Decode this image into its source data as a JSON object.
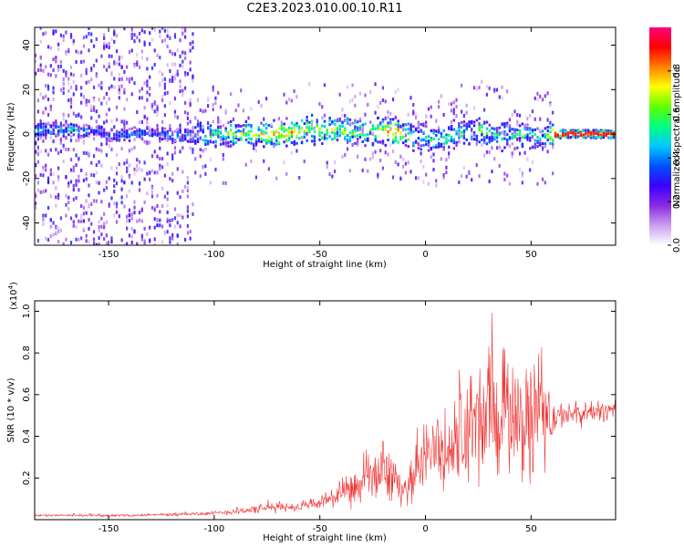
{
  "title": "C2E3.2023.010.00.10.R11",
  "chart_data": [
    {
      "type": "heatmap",
      "xlabel": "Height of straight line (km)",
      "ylabel": "Frequency (Hz)",
      "xlim": [
        -185,
        90
      ],
      "ylim": [
        -50,
        48
      ],
      "xticks": [
        -150,
        -100,
        -50,
        0,
        50
      ],
      "yticks": [
        -40,
        -20,
        0,
        20,
        40
      ],
      "grid": false,
      "colorbar": {
        "label": "Normalized spectral amplitude",
        "range": [
          0,
          1
        ],
        "ticks": [
          0.0,
          0.2,
          0.4,
          0.6,
          0.8
        ],
        "tick_labels": [
          "0.0",
          "0.2",
          "0.4",
          "0.6",
          "0.8"
        ],
        "colors": [
          "#ffffff",
          "#c9a0f0",
          "#8a2be2",
          "#3a00ff",
          "#0050ff",
          "#00c8ff",
          "#00ff80",
          "#60ff00",
          "#ffff00",
          "#ff8000",
          "#ff0000",
          "#ff0080"
        ]
      },
      "ridge": {
        "x": [
          -170,
          -150,
          -130,
          -110,
          -90,
          -70,
          -50,
          -30,
          -15,
          -5,
          5,
          15,
          25,
          35,
          45,
          55,
          60,
          70,
          90
        ],
        "frequency": [
          2,
          0,
          0,
          -1,
          0,
          0,
          2,
          1,
          1,
          -1,
          -2,
          0,
          2,
          -1,
          0,
          -2,
          0,
          0,
          0
        ],
        "amplitude": [
          0.45,
          0.35,
          0.3,
          0.45,
          0.6,
          0.75,
          0.7,
          0.6,
          0.85,
          0.5,
          0.55,
          0.5,
          0.55,
          0.5,
          0.5,
          0.45,
          0.8,
          0.9,
          0.9
        ]
      }
    },
    {
      "type": "line",
      "xlabel": "Height of straight line (km)",
      "ylabel": "SNR (10 * v/v)",
      "y_multiplier": "(x10",
      "y_multiplier_exp": "4",
      "y_multiplier_close": ")",
      "xlim": [
        -185,
        90
      ],
      "ylim": [
        0,
        1.05
      ],
      "xticks": [
        -150,
        -100,
        -50,
        0,
        50
      ],
      "yticks": [
        0.2,
        0.4,
        0.6,
        0.8,
        1.0
      ],
      "ytick_labels": [
        "0.2",
        "0.4",
        "0.6",
        "0.8",
        "1.0"
      ],
      "grid": false,
      "color": "#f03232",
      "series": [
        {
          "x": [
            -185,
            -160,
            -140,
            -120,
            -100,
            -90,
            -80,
            -70,
            -60,
            -50,
            -45,
            -40,
            -35,
            -30,
            -25,
            -20,
            -15,
            -10,
            -5,
            0,
            5,
            10,
            15,
            20,
            25,
            30,
            35,
            40,
            45,
            50,
            55,
            60,
            65,
            70,
            80,
            90
          ],
          "baseline": [
            0.02,
            0.02,
            0.02,
            0.025,
            0.03,
            0.04,
            0.05,
            0.06,
            0.06,
            0.08,
            0.1,
            0.12,
            0.14,
            0.16,
            0.2,
            0.24,
            0.2,
            0.12,
            0.24,
            0.3,
            0.35,
            0.3,
            0.38,
            0.42,
            0.45,
            0.5,
            0.5,
            0.5,
            0.45,
            0.5,
            0.52,
            0.48,
            0.5,
            0.5,
            0.52,
            0.52
          ],
          "spread": [
            0.005,
            0.005,
            0.005,
            0.008,
            0.01,
            0.015,
            0.02,
            0.025,
            0.02,
            0.03,
            0.05,
            0.06,
            0.08,
            0.1,
            0.13,
            0.15,
            0.1,
            0.06,
            0.12,
            0.15,
            0.18,
            0.2,
            0.25,
            0.3,
            0.3,
            0.28,
            0.3,
            0.3,
            0.25,
            0.3,
            0.3,
            0.1,
            0.06,
            0.06,
            0.05,
            0.05
          ]
        }
      ]
    }
  ]
}
